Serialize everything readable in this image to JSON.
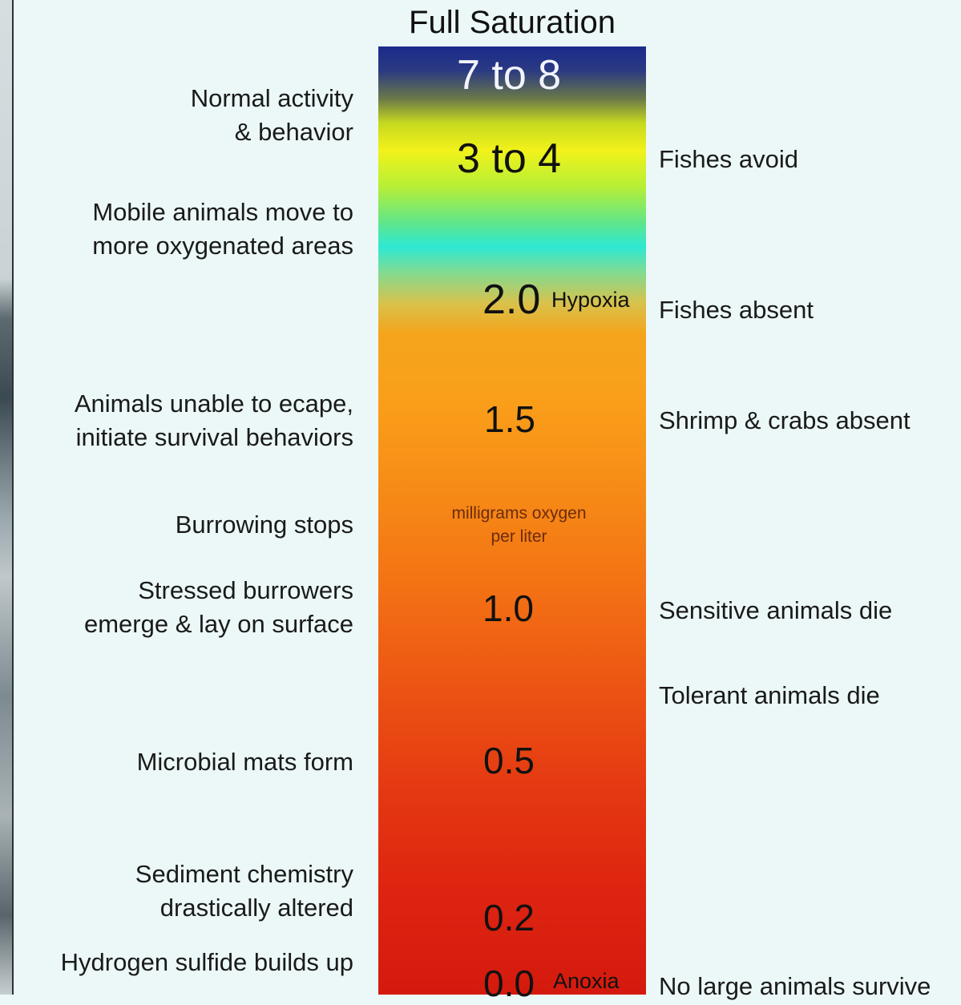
{
  "title": "Full Saturation",
  "scale": {
    "unit_line1": "milligrams oxygen",
    "unit_line2": "per liter",
    "values": [
      "7 to 8",
      "3 to 4",
      "2.0",
      "1.5",
      "1.0",
      "0.5",
      "0.2",
      "0.0"
    ],
    "hypoxia_label": "Hypoxia",
    "anoxia_label": "Anoxia"
  },
  "left_labels": [
    [
      "Normal activity",
      "& behavior"
    ],
    [
      "Mobile animals move to",
      "more oxygenated areas"
    ],
    [
      "Animals unable to ecape,",
      "initiate survival behaviors"
    ],
    [
      "Burrowing stops"
    ],
    [
      "Stressed burrowers",
      "emerge & lay on surface"
    ],
    [
      "Microbial mats form"
    ],
    [
      "Sediment chemistry",
      "drastically altered"
    ],
    [
      "Hydrogen sulfide builds up"
    ]
  ],
  "right_labels": [
    "Fishes avoid",
    "Fishes absent",
    "Shrimp & crabs absent",
    "Sensitive animals die",
    "Tolerant animals die",
    "No large animals survive"
  ],
  "colors": {
    "background": "#ebf8f7",
    "scale_top": "#1b2a8c",
    "scale_yellow": "#f2f21a",
    "scale_cyan": "#2ee8d4",
    "scale_orange": "#fa9f1a",
    "scale_bottom": "#d41a0e"
  }
}
